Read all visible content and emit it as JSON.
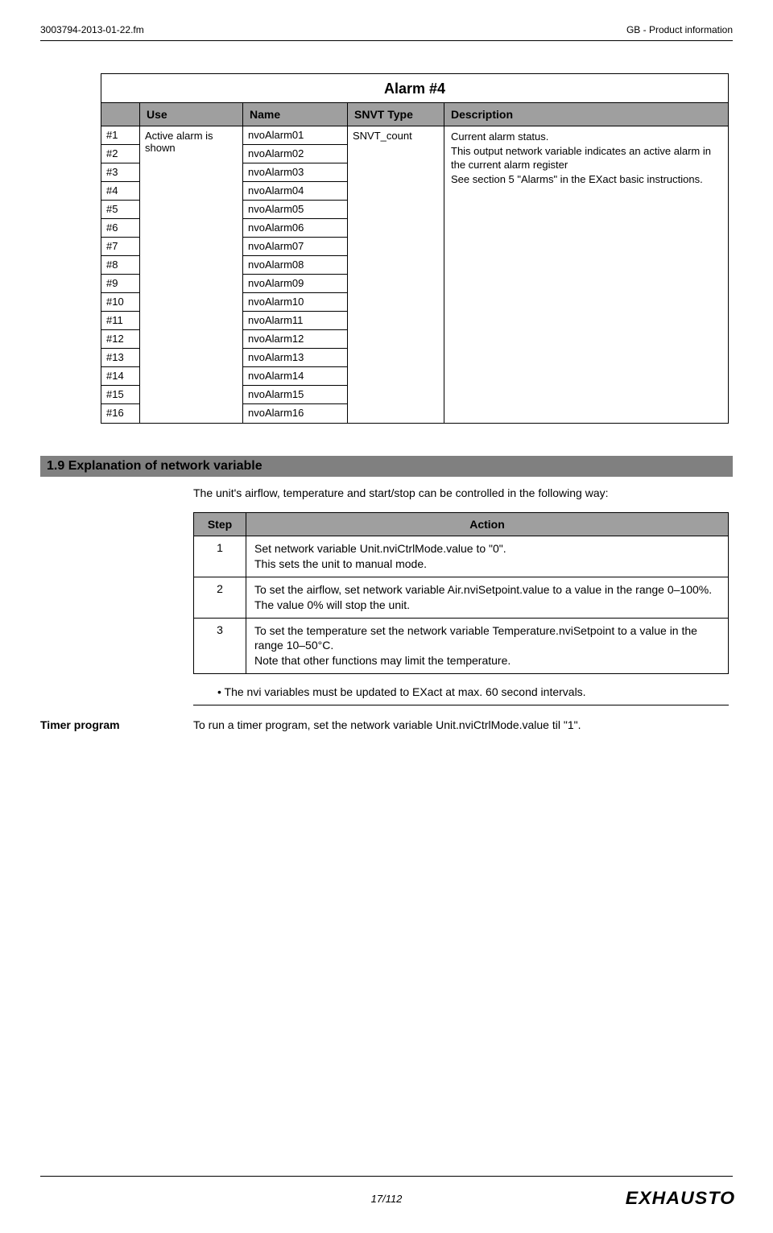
{
  "header": {
    "left": "3003794-2013-01-22.fm",
    "right": "GB - Product information"
  },
  "alarmTable": {
    "title": "Alarm #4",
    "headers": {
      "use": "Use",
      "name": "Name",
      "type": "SNVT Type",
      "desc": "Description"
    },
    "useText": "Active alarm is shown",
    "typeText": "SNVT_count",
    "descText": "Current alarm status.\nThis output network variable indicates an active alarm in the current alarm register\nSee section 5 \"Alarms\" in the EXact basic instructions.",
    "rows": [
      {
        "idx": "#1",
        "name": "nvoAlarm01"
      },
      {
        "idx": "#2",
        "name": "nvoAlarm02"
      },
      {
        "idx": "#3",
        "name": "nvoAlarm03"
      },
      {
        "idx": "#4",
        "name": "nvoAlarm04"
      },
      {
        "idx": "#5",
        "name": "nvoAlarm05"
      },
      {
        "idx": "#6",
        "name": "nvoAlarm06"
      },
      {
        "idx": "#7",
        "name": "nvoAlarm07"
      },
      {
        "idx": "#8",
        "name": "nvoAlarm08"
      },
      {
        "idx": "#9",
        "name": "nvoAlarm09"
      },
      {
        "idx": "#10",
        "name": "nvoAlarm10"
      },
      {
        "idx": "#11",
        "name": "nvoAlarm11"
      },
      {
        "idx": "#12",
        "name": "nvoAlarm12"
      },
      {
        "idx": "#13",
        "name": "nvoAlarm13"
      },
      {
        "idx": "#14",
        "name": "nvoAlarm14"
      },
      {
        "idx": "#15",
        "name": "nvoAlarm15"
      },
      {
        "idx": "#16",
        "name": "nvoAlarm16"
      }
    ]
  },
  "section": {
    "title": "1.9   Explanation of network variable",
    "intro": "The unit's airflow, temperature and start/stop can be controlled in the following way:",
    "stepsHeader": {
      "step": "Step",
      "action": "Action"
    },
    "steps": [
      {
        "num": "1",
        "action": "Set network variable Unit.nviCtrlMode.value to \"0\".\nThis sets the unit to manual mode."
      },
      {
        "num": "2",
        "action": "To set the airflow, set network variable Air.nviSetpoint.value to a value in the range 0–100%.\nThe value 0% will stop the unit."
      },
      {
        "num": "3",
        "action": "To set the temperature  set the network variable Temperature.nviSetpoint to a value in the range 10–50°C.\nNote that other functions may limit the temperature."
      }
    ],
    "bullet": "The nvi variables must be updated to EXact at max. 60 second intervals.",
    "timerLabel": "Timer program",
    "timerText": "To run a timer program, set the network variable Unit.nviCtrlMode.value til \"1\"."
  },
  "footer": {
    "pageNum": "17/112",
    "logo": "EXHAUSTO"
  },
  "colors": {
    "headerBg": "#9f9f9f",
    "sectionBg": "#808080",
    "text": "#000000",
    "background": "#ffffff"
  }
}
